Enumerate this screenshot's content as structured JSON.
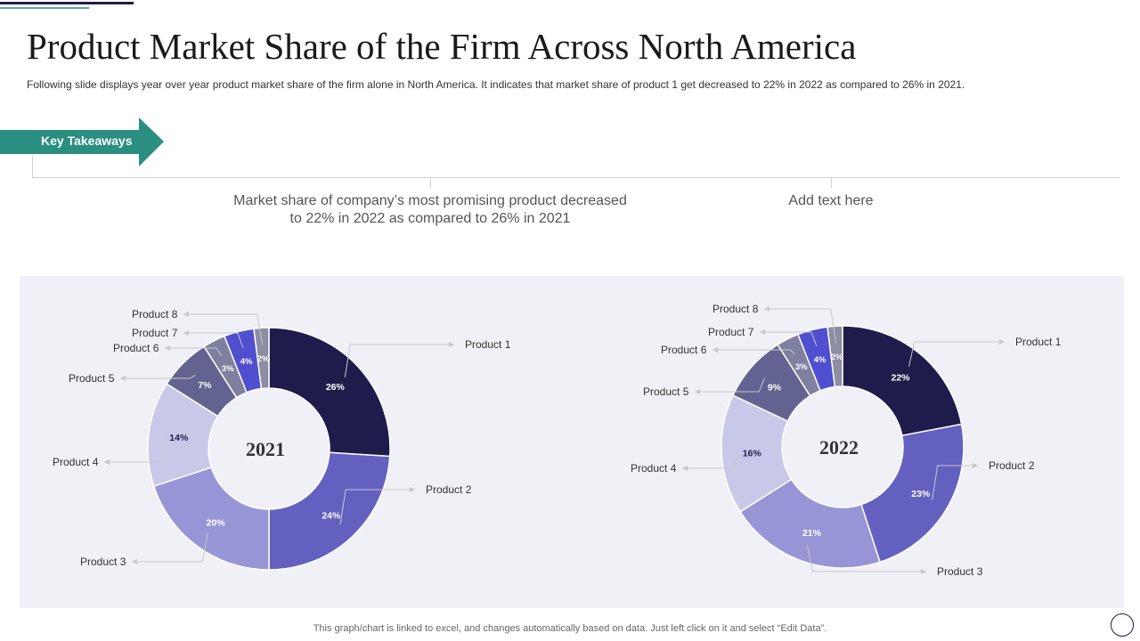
{
  "header": {
    "title": "Product Market Share of the Firm Across North America",
    "subtitle": "Following slide displays year over year product market share of the firm alone in North America. It indicates that market share of product 1 get decreased to 22% in 2022 as compared to 26% in 2021."
  },
  "key_takeaways": {
    "label": "Key Takeaways",
    "items": [
      "Market share of company’s most promising product decreased to 22% in 2022 as compared to 26% in 2021",
      "Add text here"
    ]
  },
  "footnote": "This graph/chart is linked to excel, and changes automatically based on data. Just left click on it and select “Edit Data”.",
  "colors": {
    "accent": "#2a8f80",
    "panel": "#f0f0f7",
    "slices": [
      "#1f1c4b",
      "#6360c0",
      "#9895d6",
      "#c9c8e8",
      "#636391",
      "#7f7f9f",
      "#4f4fd0",
      "#8d8da3"
    ]
  },
  "chart_data": [
    {
      "type": "pie",
      "title": "2021",
      "categories": [
        "Product 1",
        "Product 2",
        "Product 3",
        "Product 4",
        "Product 5",
        "Product 6",
        "Product 7",
        "Product 8"
      ],
      "values": [
        26,
        24,
        20,
        14,
        7,
        3,
        4,
        2
      ],
      "labels": [
        "26%",
        "24%",
        "20%",
        "14%",
        "7%",
        "3%",
        "4%",
        "2%"
      ]
    },
    {
      "type": "pie",
      "title": "2022",
      "categories": [
        "Product 1",
        "Product 2",
        "Product 3",
        "Product 4",
        "Product 5",
        "Product 6",
        "Product 7",
        "Product 8"
      ],
      "values": [
        22,
        23,
        21,
        16,
        9,
        3,
        4,
        2
      ],
      "labels": [
        "22%",
        "23%",
        "21%",
        "16%",
        "9%",
        "3%",
        "4%",
        "2%"
      ]
    }
  ]
}
